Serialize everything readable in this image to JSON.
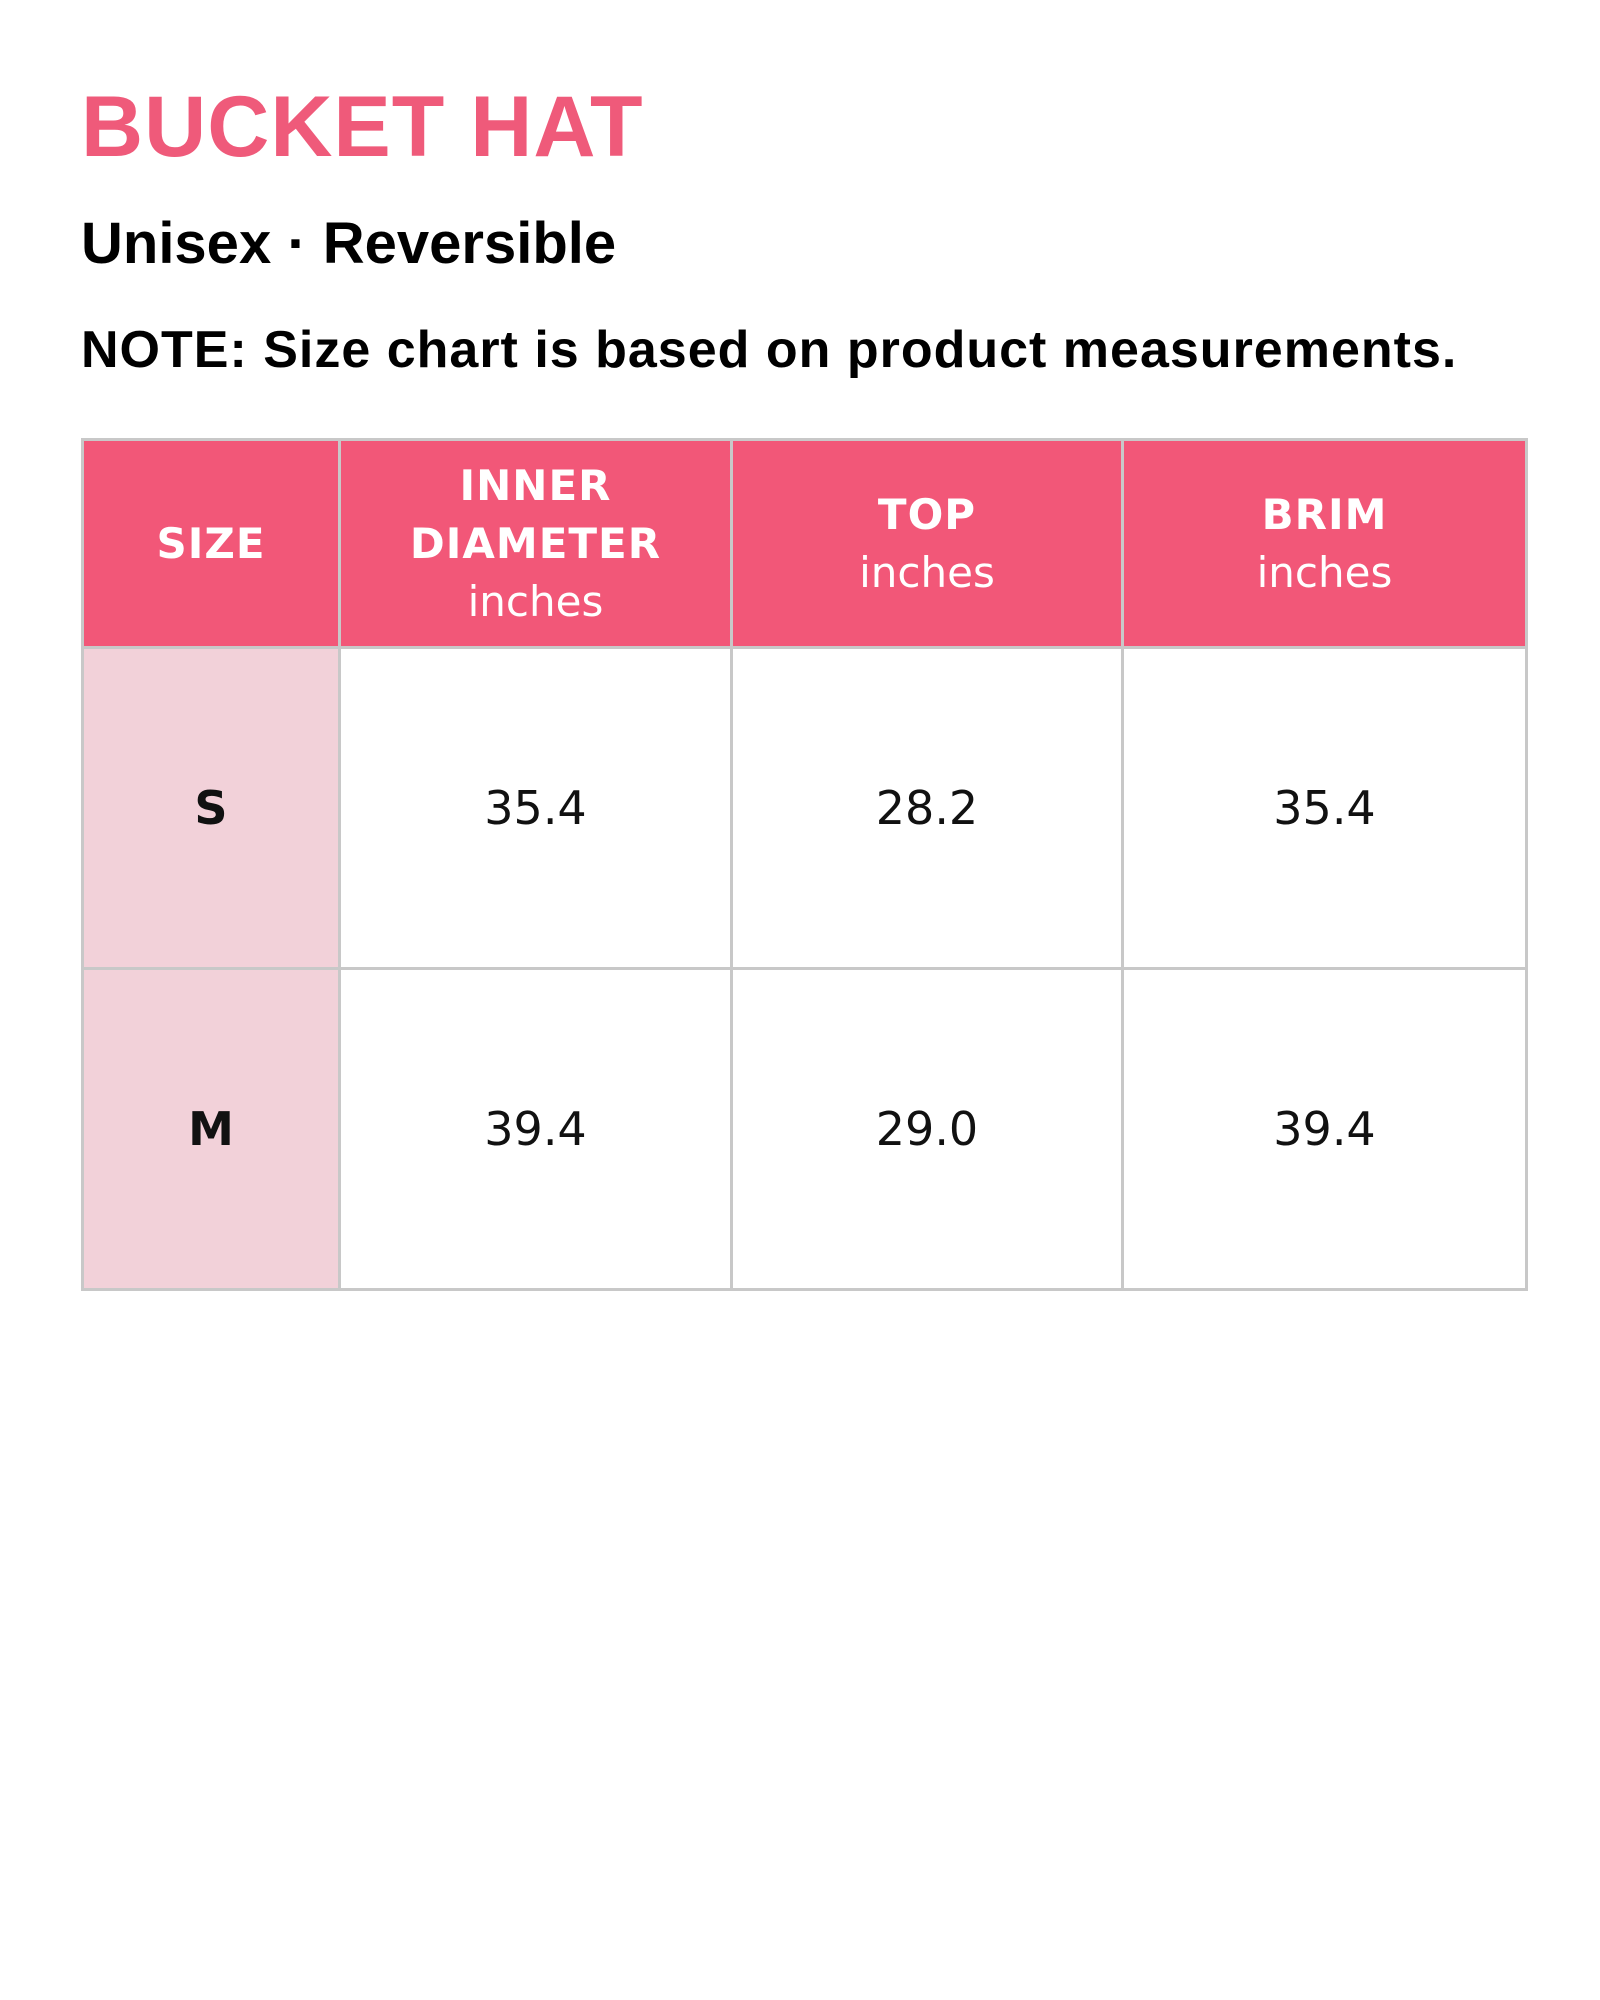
{
  "header": {
    "title": "BUCKET HAT",
    "subtitle": "Unisex · Reversible",
    "note": "NOTE: Size chart is based on product measurements."
  },
  "table": {
    "columns": [
      {
        "name": "SIZE"
      },
      {
        "name": "INNER DIAMETER",
        "unit": "inches"
      },
      {
        "name": "TOP",
        "unit": "inches"
      },
      {
        "name": "BRIM",
        "unit": "inches"
      }
    ],
    "rows": [
      [
        "S",
        "35.4",
        "28.2",
        "35.4"
      ],
      [
        "M",
        "39.4",
        "29.0",
        "39.4"
      ]
    ]
  }
}
